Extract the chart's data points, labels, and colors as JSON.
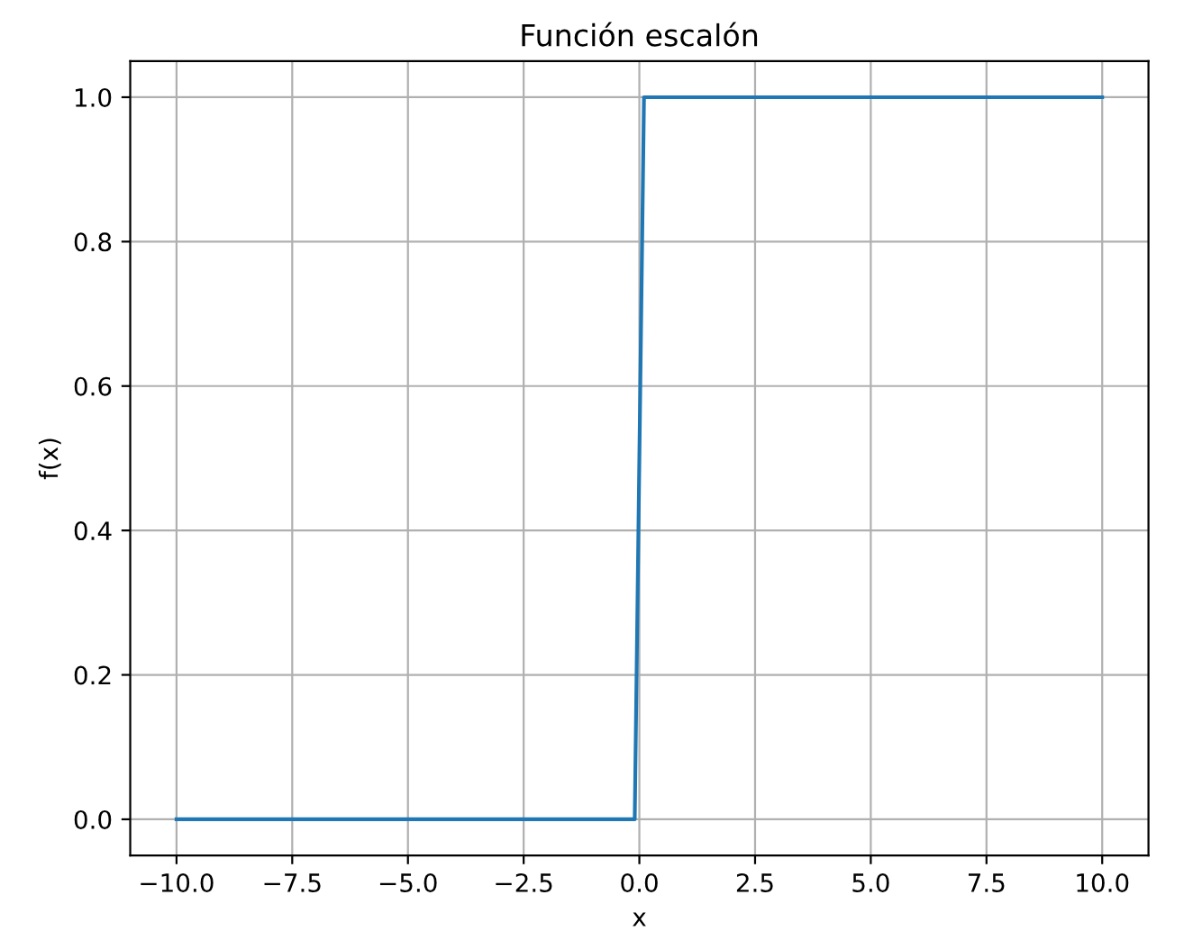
{
  "chart_data": {
    "type": "line",
    "title": "Función escalón",
    "xlabel": "x",
    "ylabel": "f(x)",
    "x": [
      -10,
      -0.1,
      0.1,
      10
    ],
    "series": [
      {
        "color": "#1f77b4",
        "values": [
          0,
          0,
          1,
          1
        ]
      }
    ],
    "xlim": [
      -11,
      11
    ],
    "ylim": [
      -0.05,
      1.05
    ],
    "xticks": [
      {
        "value": -10,
        "label": "−10.0"
      },
      {
        "value": -7.5,
        "label": "−7.5"
      },
      {
        "value": -5,
        "label": "−5.0"
      },
      {
        "value": -2.5,
        "label": "−2.5"
      },
      {
        "value": 0,
        "label": "0.0"
      },
      {
        "value": 2.5,
        "label": "2.5"
      },
      {
        "value": 5,
        "label": "5.0"
      },
      {
        "value": 7.5,
        "label": "7.5"
      },
      {
        "value": 10,
        "label": "10.0"
      }
    ],
    "yticks": [
      {
        "value": 0,
        "label": "0.0"
      },
      {
        "value": 0.2,
        "label": "0.2"
      },
      {
        "value": 0.4,
        "label": "0.4"
      },
      {
        "value": 0.6,
        "label": "0.6"
      },
      {
        "value": 0.8,
        "label": "0.8"
      },
      {
        "value": 1,
        "label": "1.0"
      }
    ],
    "grid": true
  }
}
